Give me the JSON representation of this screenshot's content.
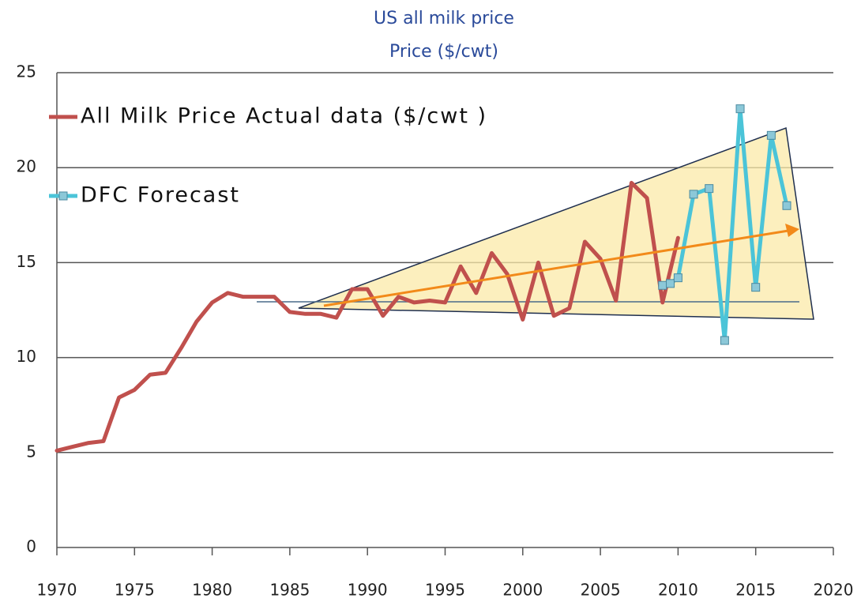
{
  "chart_data": {
    "type": "line",
    "title": "US all milk price",
    "subtitle": "Price ($/cwt)",
    "xlim": [
      1970,
      2020
    ],
    "xticks": [
      1970,
      1975,
      1980,
      1985,
      1990,
      1995,
      2000,
      2005,
      2010,
      2015,
      2020
    ],
    "ylim": [
      0,
      25
    ],
    "yticks": [
      0,
      5,
      10,
      15,
      20,
      25
    ],
    "grid": true,
    "series": [
      {
        "name": "All Milk Price Actual data ($/cwt )",
        "color": "#c0504d",
        "x": [
          1970,
          1971,
          1972,
          1973,
          1974,
          1975,
          1976,
          1977,
          1978,
          1979,
          1980,
          1981,
          1982,
          1983,
          1984,
          1985,
          1986,
          1987,
          1988,
          1989,
          1990,
          1991,
          1992,
          1993,
          1994,
          1995,
          1996,
          1997,
          1998,
          1999,
          2000,
          2001,
          2002,
          2003,
          2004,
          2005,
          2006,
          2007,
          2008,
          2009,
          2010
        ],
        "values": [
          5.1,
          5.3,
          5.5,
          5.6,
          7.9,
          8.3,
          9.1,
          9.2,
          10.5,
          11.9,
          12.9,
          13.4,
          13.2,
          13.2,
          13.2,
          12.4,
          12.3,
          12.3,
          12.1,
          13.6,
          13.6,
          12.2,
          13.2,
          12.9,
          13.0,
          12.9,
          14.8,
          13.4,
          15.5,
          14.4,
          12.0,
          15.0,
          12.2,
          12.6,
          16.1,
          15.2,
          13.0,
          19.2,
          18.4,
          12.9,
          16.3
        ]
      },
      {
        "name": "DFC Forecast",
        "color": "#4bc4d8",
        "x": [
          2009,
          2009.5,
          2010,
          2011,
          2012,
          2013,
          2014,
          2015,
          2016,
          2017
        ],
        "values": [
          13.8,
          13.9,
          14.2,
          18.6,
          18.9,
          10.9,
          23.1,
          13.7,
          21.7,
          18.0
        ]
      }
    ]
  }
}
